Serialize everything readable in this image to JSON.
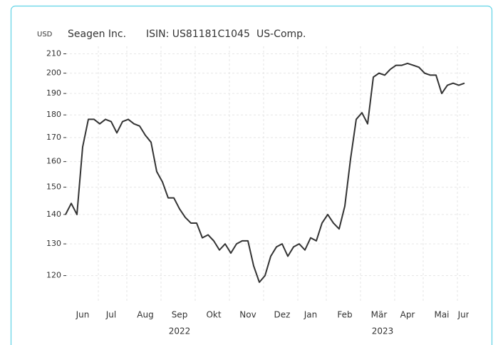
{
  "chart_data": {
    "type": "line",
    "unit": "USD",
    "title": "Seagen Inc.",
    "isin": "ISIN: US81181C1045",
    "exchange": "US-Comp.",
    "categories": [
      null,
      null,
      null,
      "Jun",
      null,
      null,
      null,
      null,
      "Jul",
      null,
      null,
      null,
      null,
      null,
      "Aug",
      null,
      null,
      null,
      null,
      null,
      "Sep",
      null,
      null,
      null,
      null,
      null,
      "Okt",
      null,
      null,
      null,
      null,
      null,
      "Nov",
      null,
      null,
      null,
      null,
      null,
      "Dez",
      null,
      null,
      null,
      null,
      "Jan",
      null,
      null,
      null,
      null,
      null,
      "Feb",
      null,
      null,
      null,
      null,
      null,
      "Mär",
      null,
      null,
      null,
      null,
      "Apr",
      null,
      null,
      null,
      null,
      null,
      "Mai",
      null,
      null,
      null,
      "Jun"
    ],
    "years": [
      "2022",
      "2023"
    ],
    "series": [
      {
        "name": "Seagen Inc.",
        "color": "#333333",
        "values": [
          140,
          144,
          140,
          166,
          178,
          178,
          176,
          178,
          177,
          172,
          177,
          178,
          176,
          175,
          171,
          168,
          156,
          152,
          146,
          146,
          142,
          139,
          137,
          137,
          132,
          133,
          131,
          128,
          130,
          127,
          130,
          131,
          131,
          123,
          118,
          120,
          126,
          129,
          130,
          126,
          129,
          130,
          128,
          132,
          131,
          137,
          140,
          137,
          135,
          143,
          161,
          178,
          181,
          176,
          198,
          200,
          199,
          202,
          204,
          204,
          205,
          204,
          203,
          200,
          199,
          199,
          190,
          194,
          195,
          194,
          195
        ]
      }
    ],
    "ylim": [
      112,
      214
    ],
    "yticks": [
      120,
      130,
      140,
      150,
      160,
      170,
      180,
      190,
      200,
      210
    ],
    "log_scale": true,
    "grid": true
  }
}
